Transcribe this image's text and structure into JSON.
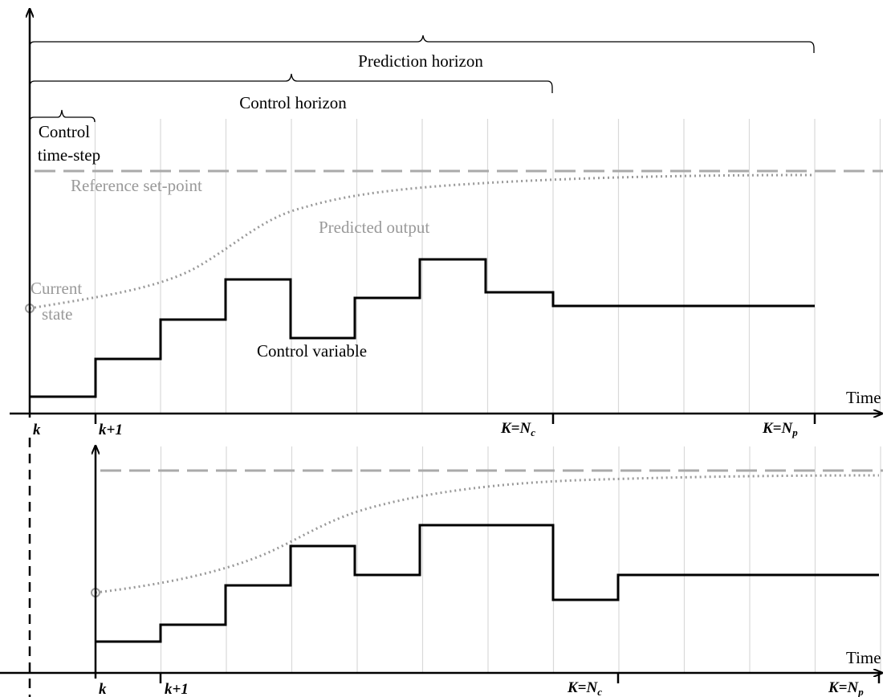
{
  "colors": {
    "axis": "#000000",
    "gridline": "#d9d9d9",
    "reference": "#aaaaaa",
    "predicted": "#999999",
    "control": "#000000",
    "annotation_gray": "#999999"
  },
  "top_panel": {
    "labels": {
      "prediction_horizon": "Prediction horizon",
      "control_horizon": "Control horizon",
      "control_timestep_line1": "Control",
      "control_timestep_line2": "time-step",
      "reference_setpoint": "Reference set-point",
      "predicted_output": "Predicted output",
      "current_state_line1": "Current",
      "current_state_line2": "state",
      "control_variable": "Control variable",
      "time": "Time"
    },
    "ticks": {
      "k": "k",
      "k_plus_1": "k+1",
      "k_nc_main": "K=N",
      "k_nc_sub": "c",
      "k_np_main": "K=N",
      "k_np_sub": "p"
    },
    "control_variable_steps": [
      1,
      3,
      5,
      7,
      4,
      6,
      8,
      6.2,
      5.5,
      5.5,
      5.5,
      5.5
    ],
    "control_horizon_steps": 8,
    "prediction_horizon_steps": 12
  },
  "bottom_panel": {
    "labels": {
      "time": "Time"
    },
    "ticks": {
      "k": "k",
      "k_plus_1": "k+1",
      "k_nc_main": "K=N",
      "k_nc_sub": "c",
      "k_np_main": "K=N",
      "k_np_sub": "p"
    },
    "control_variable_steps": [
      1,
      2,
      4,
      6.5,
      5,
      8,
      8,
      3.5,
      4.8,
      4.8,
      4.8,
      4.8
    ]
  }
}
